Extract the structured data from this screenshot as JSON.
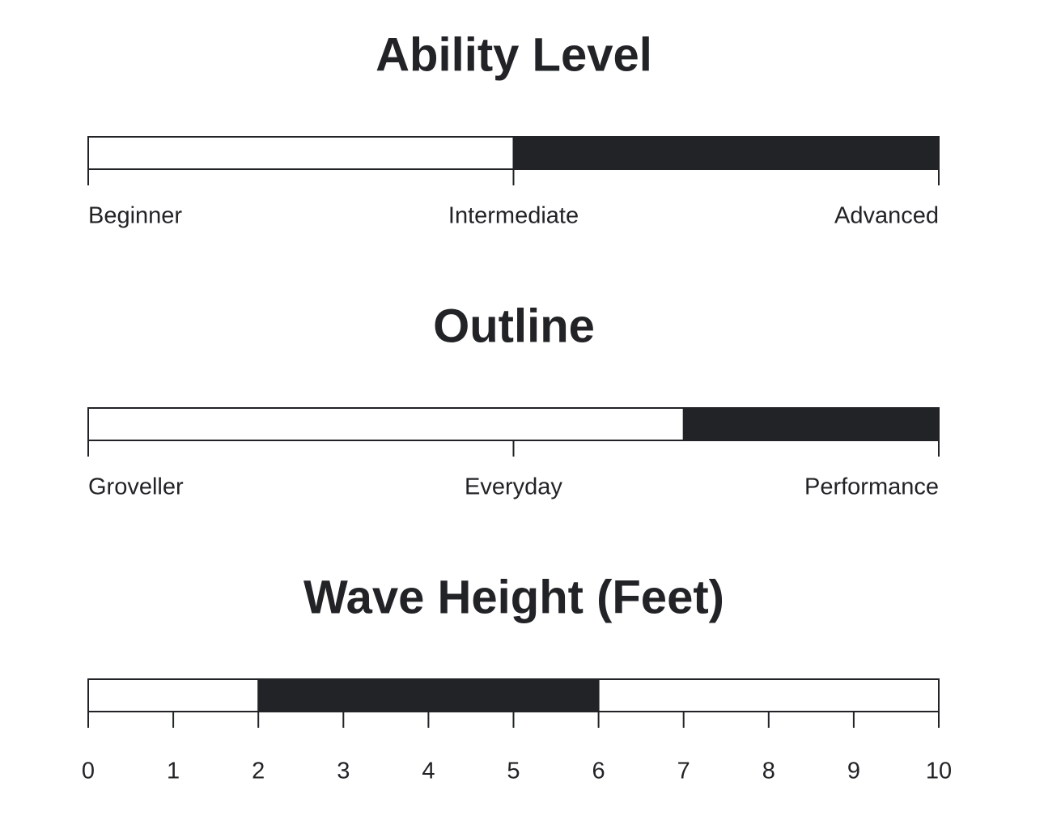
{
  "chart_data": [
    {
      "type": "range",
      "title": "Ability Level",
      "xlim": [
        0,
        2
      ],
      "xticks": [
        {
          "value": 0,
          "label": "Beginner"
        },
        {
          "value": 1,
          "label": "Intermediate"
        },
        {
          "value": 2,
          "label": "Advanced"
        }
      ],
      "values": [
        1,
        2
      ],
      "color": "#222326"
    },
    {
      "type": "range",
      "title": "Outline",
      "xlim": [
        0,
        2
      ],
      "xticks": [
        {
          "value": 0,
          "label": "Groveller"
        },
        {
          "value": 1,
          "label": "Everyday"
        },
        {
          "value": 2,
          "label": "Performance"
        }
      ],
      "values": [
        1.4,
        2
      ],
      "color": "#222326"
    },
    {
      "type": "range",
      "title": "Wave Height (Feet)",
      "xlim": [
        0,
        10
      ],
      "xticks": [
        0,
        1,
        2,
        3,
        4,
        5,
        6,
        7,
        8,
        9,
        10
      ],
      "values": [
        2,
        6
      ],
      "color": "#222326"
    }
  ]
}
